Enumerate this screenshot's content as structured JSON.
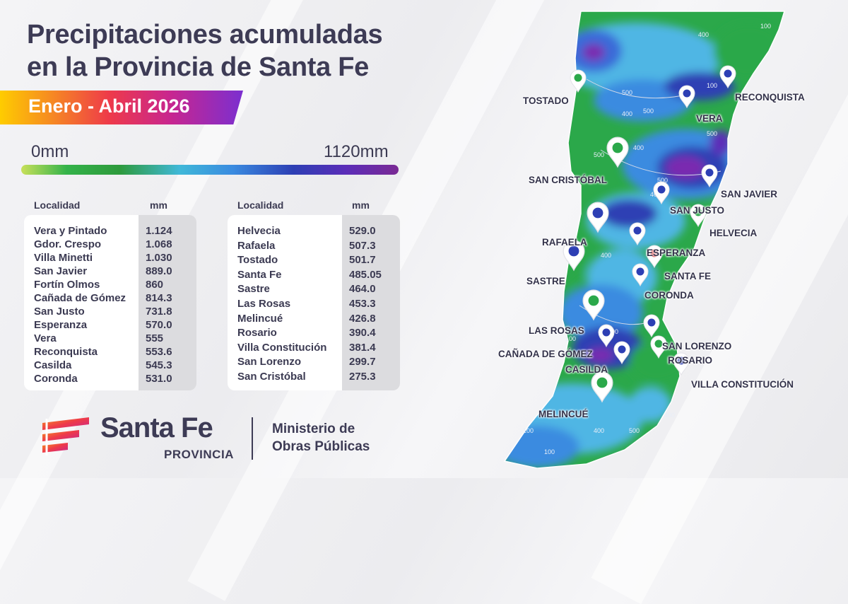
{
  "header": {
    "title_line1": "Precipitaciones acumuladas",
    "title_line2": "en la Provincia de Santa Fe",
    "period": "Enero - Abril 2026"
  },
  "scale": {
    "min_label": "0mm",
    "max_label": "1120mm",
    "colors": [
      "#c8e05a",
      "#34b34a",
      "#40b8d8",
      "#3a8be0",
      "#2d3fb4",
      "#5b2db8",
      "#7a2a94"
    ]
  },
  "table_left": {
    "col_locality": "Localidad",
    "col_mm": "mm",
    "rows": [
      {
        "name": "Vera y Pintado",
        "value": "1.124"
      },
      {
        "name": "Gdor. Crespo",
        "value": "1.068"
      },
      {
        "name": "Villa Minetti",
        "value": "1.030"
      },
      {
        "name": "San Javier",
        "value": "889.0"
      },
      {
        "name": "Fortín Olmos",
        "value": "860"
      },
      {
        "name": "Cañada de Gómez",
        "value": "814.3"
      },
      {
        "name": "San Justo",
        "value": "731.8"
      },
      {
        "name": "Esperanza",
        "value": "570.0"
      },
      {
        "name": "Vera",
        "value": "555"
      },
      {
        "name": "Reconquista",
        "value": "553.6"
      },
      {
        "name": "Casilda",
        "value": "545.3"
      },
      {
        "name": "Coronda",
        "value": "531.0"
      }
    ]
  },
  "table_right": {
    "col_locality": "Localidad",
    "col_mm": "mm",
    "rows": [
      {
        "name": "Helvecia",
        "value": "529.0"
      },
      {
        "name": "Rafaela",
        "value": "507.3"
      },
      {
        "name": "Tostado",
        "value": "501.7"
      },
      {
        "name": "Santa Fe",
        "value": "485.05"
      },
      {
        "name": "Sastre",
        "value": "464.0"
      },
      {
        "name": "Las Rosas",
        "value": "453.3"
      },
      {
        "name": "Melincué",
        "value": "426.8"
      },
      {
        "name": "Rosario",
        "value": "390.4"
      },
      {
        "name": "Villa Constitución",
        "value": "381.4"
      },
      {
        "name": "San Lorenzo",
        "value": "299.7"
      },
      {
        "name": "San Cristóbal",
        "value": "275.3"
      }
    ]
  },
  "map": {
    "cities": [
      {
        "label": "TOSTADO"
      },
      {
        "label": "RECONQUISTA"
      },
      {
        "label": "VERA"
      },
      {
        "label": "SAN CRISTÓBAL"
      },
      {
        "label": "SAN JAVIER"
      },
      {
        "label": "SAN JUSTO"
      },
      {
        "label": "HELVECIA"
      },
      {
        "label": "RAFAELA"
      },
      {
        "label": "ESPERANZA"
      },
      {
        "label": "SANTA FE"
      },
      {
        "label": "SASTRE"
      },
      {
        "label": "CORONDA"
      },
      {
        "label": "LAS ROSAS"
      },
      {
        "label": "SAN LORENZO"
      },
      {
        "label": "CAÑADA DE GÓMEZ"
      },
      {
        "label": "ROSARIO"
      },
      {
        "label": "CASILDA"
      },
      {
        "label": "VILLA CONSTITUCIÓN"
      },
      {
        "label": "MELINCUÉ"
      }
    ],
    "contour_labels": [
      "100",
      "400",
      "500",
      "100",
      "500",
      "400",
      "500",
      "400",
      "500",
      "500",
      "400",
      "400",
      "500",
      "100",
      "100",
      "400",
      "500",
      "100",
      "400"
    ]
  },
  "footer": {
    "brand": "Santa Fe",
    "brand_sub": "PROVINCIA",
    "ministry_line1": "Ministerio de",
    "ministry_line2": "Obras Públicas"
  }
}
